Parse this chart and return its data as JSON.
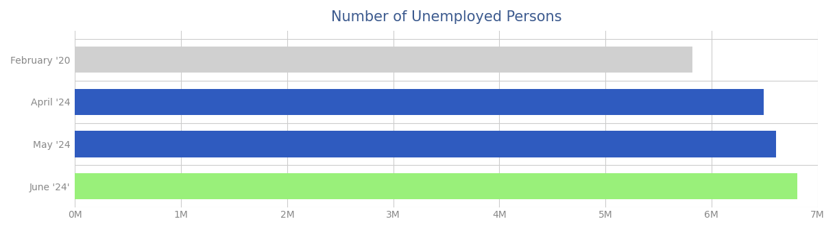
{
  "title": "Number of Unemployed Persons",
  "title_color": "#3c5a8e",
  "title_fontsize": 15,
  "categories": [
    "February '20",
    "April '24",
    "May '24",
    "June '24'"
  ],
  "values": [
    5820000,
    6490000,
    6610000,
    6811000
  ],
  "bar_colors": [
    "#d0d0d0",
    "#2f5bbf",
    "#2f5bbf",
    "#99f07a"
  ],
  "xlim": [
    0,
    7000000
  ],
  "xtick_step": 1000000,
  "background_color": "#ffffff",
  "bar_height": 0.62,
  "grid_color": "#cccccc",
  "tick_label_color": "#888888",
  "ylabel_color": "#888888"
}
